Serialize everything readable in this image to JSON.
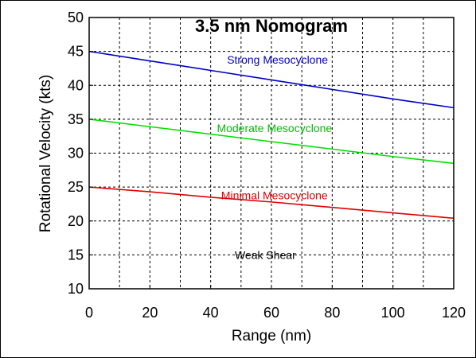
{
  "chart_data": {
    "type": "line",
    "title": "3.5 nm Nomogram",
    "xlabel": "Range (nm)",
    "ylabel": "Rotational Velocity (kts)",
    "xlim": [
      0,
      120
    ],
    "ylim": [
      10,
      50
    ],
    "x_ticks": [
      "0",
      "20",
      "40",
      "60",
      "80",
      "100",
      "120"
    ],
    "y_ticks": [
      "10",
      "15",
      "20",
      "25",
      "30",
      "35",
      "40",
      "45",
      "50"
    ],
    "x_tick_values": [
      0,
      20,
      40,
      60,
      80,
      100,
      120
    ],
    "y_tick_values": [
      10,
      15,
      20,
      25,
      30,
      35,
      40,
      45,
      50
    ],
    "grid": true,
    "x_grid_step": 10,
    "y_grid_step": 5,
    "series": [
      {
        "name": "Strong Mesocyclone",
        "color": "#0000c8",
        "x": [
          0,
          20,
          40,
          60,
          80,
          100,
          120
        ],
        "values": [
          45,
          43.6,
          42.2,
          40.8,
          39.4,
          38.0,
          36.7
        ]
      },
      {
        "name": "Moderate Mesocyclone",
        "color": "#00e000",
        "x": [
          0,
          20,
          40,
          60,
          80,
          100,
          120
        ],
        "values": [
          35,
          33.9,
          32.8,
          31.7,
          30.6,
          29.5,
          28.5
        ]
      },
      {
        "name": "Minimal Mesocyclone",
        "color": "#e00000",
        "x": [
          0,
          20,
          40,
          60,
          80,
          100,
          120
        ],
        "values": [
          25,
          24.3,
          23.5,
          22.8,
          22.0,
          21.2,
          20.4
        ]
      }
    ],
    "annotations": [
      {
        "text": "Strong Mesocyclone",
        "color": "#0000c8",
        "x": 62,
        "y": 43.2
      },
      {
        "text": "Moderate Mesocyclone",
        "color": "#00c000",
        "x": 61,
        "y": 33.1
      },
      {
        "text": "Minimal Mesocyclone",
        "color": "#e00000",
        "x": 61,
        "y": 23.2
      },
      {
        "text": "Weak Shear",
        "color": "#000000",
        "x": 58,
        "y": 14.4
      }
    ]
  }
}
